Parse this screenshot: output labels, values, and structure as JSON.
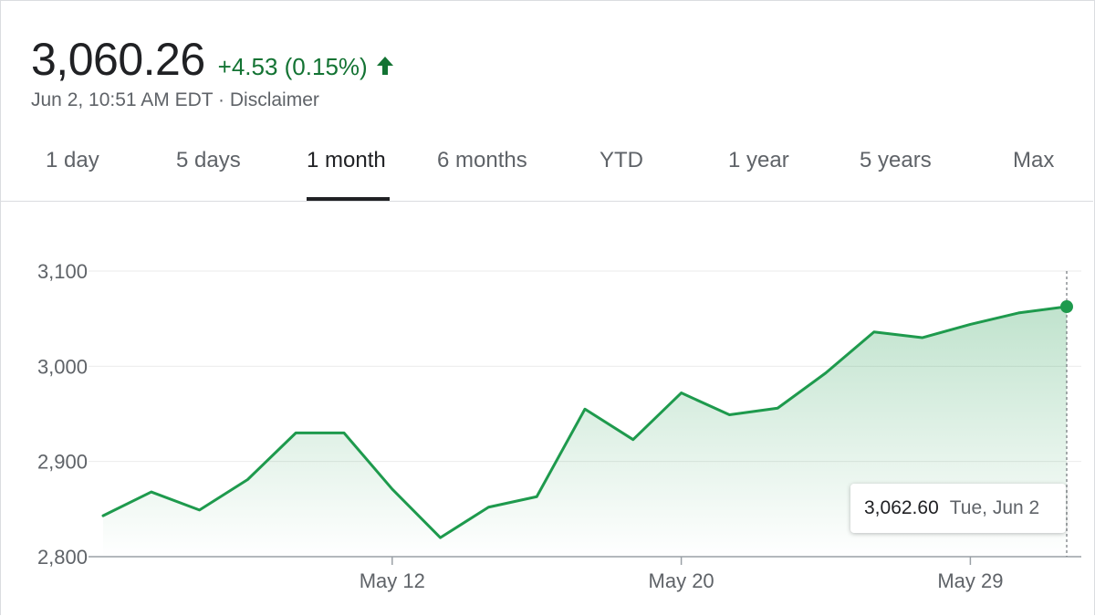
{
  "quote": {
    "price": "3,060.26",
    "change": "+4.53 (0.15%)",
    "arrow_icon": "arrow-up-icon",
    "timestamp": "Jun 2, 10:51 AM EDT · Disclaimer"
  },
  "tabs": [
    {
      "label": "1 day"
    },
    {
      "label": "5 days"
    },
    {
      "label": "1 month"
    },
    {
      "label": "6 months"
    },
    {
      "label": "YTD"
    },
    {
      "label": "1 year"
    },
    {
      "label": "5 years"
    },
    {
      "label": "Max"
    }
  ],
  "active_tab": "1 month",
  "tooltip": {
    "value": "3,062.60",
    "date": "Tue, Jun 2"
  },
  "colors": {
    "up": "#137333",
    "line": "#1e9a4d",
    "text": "#202124",
    "muted": "#5f6368"
  },
  "chart_data": {
    "type": "line",
    "ylim": [
      2800,
      3100
    ],
    "yticks": [
      2800,
      2900,
      3000,
      3100
    ],
    "ytick_labels": [
      "2,800",
      "2,900",
      "3,000",
      "3,100"
    ],
    "xtick_labels": [
      "May 12",
      "May 20",
      "May 29"
    ],
    "xtick_index": [
      6,
      12,
      18
    ],
    "grid": true,
    "fill": "area-gradient",
    "series": [
      {
        "values": [
          2843,
          2868,
          2849,
          2881,
          2930,
          2930,
          2871,
          2820,
          2852,
          2863,
          2955,
          2923,
          2972,
          2949,
          2956,
          2993,
          3036,
          3030,
          3044,
          3056,
          3062.6
        ]
      }
    ]
  }
}
